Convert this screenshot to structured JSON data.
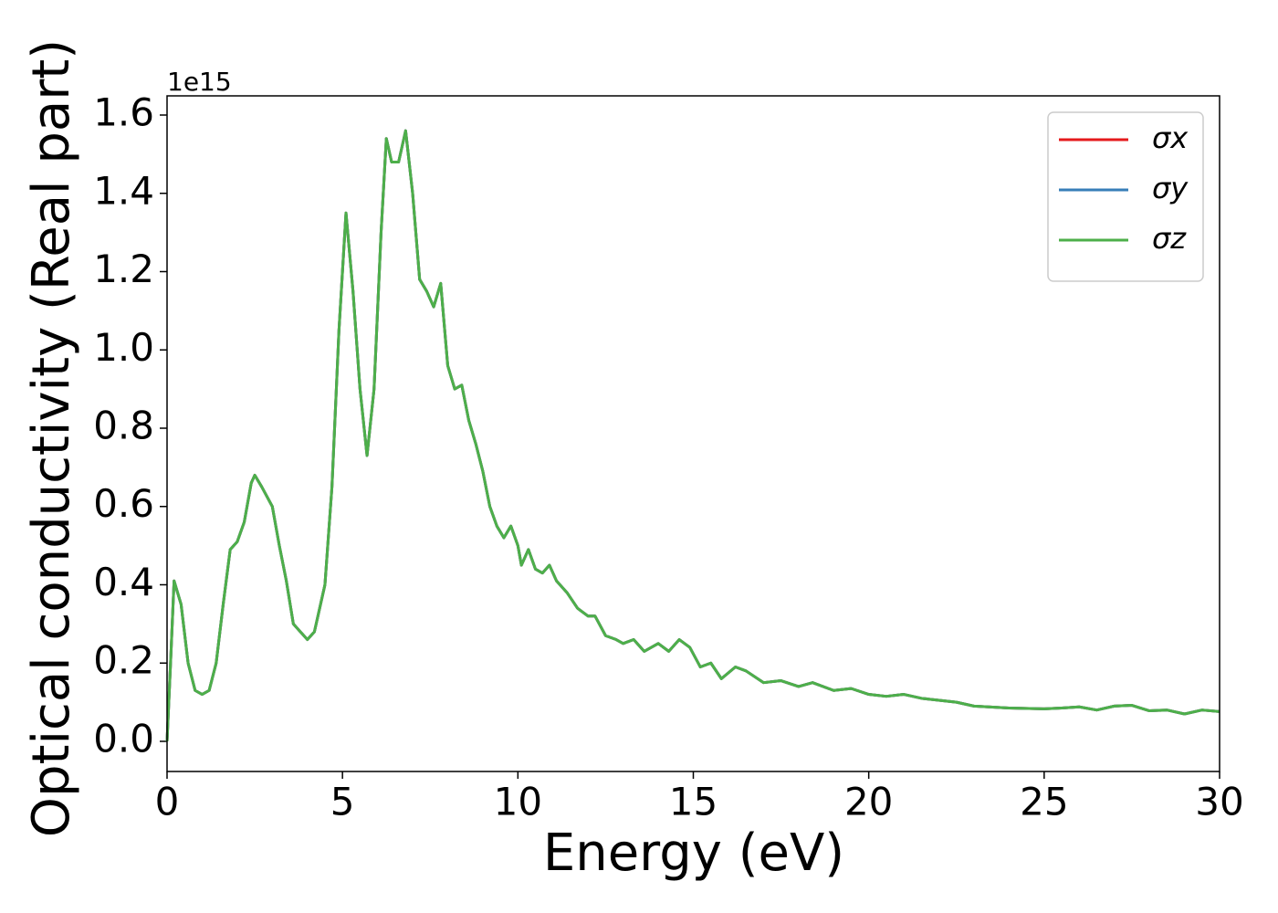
{
  "chart_data": {
    "type": "line",
    "xlabel": "Energy (eV)",
    "ylabel": "Optical conductivity (Real part)",
    "y_offset_label": "1e15",
    "xlim": [
      0,
      30
    ],
    "ylim": [
      -0.077,
      1.649
    ],
    "xticks": [
      0,
      5,
      10,
      15,
      20,
      25,
      30
    ],
    "yticks": [
      {
        "value": 0,
        "label": "0.0"
      },
      {
        "value": 0.2,
        "label": "0.2"
      },
      {
        "value": 0.4,
        "label": "0.4"
      },
      {
        "value": 0.6,
        "label": "0.6"
      },
      {
        "value": 0.8,
        "label": "0.8"
      },
      {
        "value": 1.0,
        "label": "1.0"
      },
      {
        "value": 1.2,
        "label": "1.2"
      },
      {
        "value": 1.4,
        "label": "1.4"
      },
      {
        "value": 1.6,
        "label": "1.6"
      }
    ],
    "grid": false,
    "legend": "upper right",
    "x": [
      0,
      0.1,
      0.2,
      0.4,
      0.6,
      0.8,
      1.0,
      1.2,
      1.4,
      1.6,
      1.8,
      2.0,
      2.2,
      2.4,
      2.5,
      2.7,
      3.0,
      3.2,
      3.4,
      3.6,
      3.8,
      4.0,
      4.2,
      4.5,
      4.7,
      4.9,
      5.1,
      5.3,
      5.5,
      5.7,
      5.9,
      6.1,
      6.25,
      6.4,
      6.6,
      6.8,
      7.0,
      7.2,
      7.4,
      7.6,
      7.8,
      8.0,
      8.2,
      8.4,
      8.6,
      8.8,
      9.0,
      9.2,
      9.4,
      9.6,
      9.8,
      10.0,
      10.1,
      10.3,
      10.5,
      10.7,
      10.9,
      11.1,
      11.4,
      11.7,
      12.0,
      12.2,
      12.5,
      12.8,
      13.0,
      13.3,
      13.6,
      14.0,
      14.3,
      14.6,
      14.9,
      15.2,
      15.5,
      15.8,
      16.2,
      16.5,
      17.0,
      17.5,
      18.0,
      18.4,
      19.0,
      19.5,
      20.0,
      20.5,
      21.0,
      21.5,
      22.0,
      22.5,
      23.0,
      24.0,
      25.0,
      25.5,
      26.0,
      26.5,
      27.0,
      27.5,
      28.0,
      28.5,
      29.0,
      29.5,
      30.0
    ],
    "series": [
      {
        "name": "σx",
        "color": "#e41a1c",
        "values": [
          0.0,
          0.2,
          0.41,
          0.35,
          0.2,
          0.13,
          0.12,
          0.13,
          0.2,
          0.35,
          0.49,
          0.51,
          0.56,
          0.66,
          0.68,
          0.65,
          0.6,
          0.5,
          0.41,
          0.3,
          0.28,
          0.26,
          0.28,
          0.4,
          0.65,
          1.05,
          1.35,
          1.15,
          0.9,
          0.73,
          0.9,
          1.3,
          1.54,
          1.48,
          1.48,
          1.56,
          1.4,
          1.18,
          1.15,
          1.11,
          1.17,
          0.96,
          0.9,
          0.91,
          0.82,
          0.76,
          0.69,
          0.6,
          0.55,
          0.52,
          0.55,
          0.5,
          0.45,
          0.49,
          0.44,
          0.43,
          0.45,
          0.41,
          0.38,
          0.34,
          0.32,
          0.32,
          0.27,
          0.26,
          0.25,
          0.26,
          0.23,
          0.25,
          0.23,
          0.26,
          0.24,
          0.19,
          0.2,
          0.16,
          0.19,
          0.18,
          0.15,
          0.155,
          0.14,
          0.15,
          0.13,
          0.135,
          0.12,
          0.115,
          0.12,
          0.11,
          0.105,
          0.1,
          0.09,
          0.085,
          0.083,
          0.085,
          0.088,
          0.08,
          0.09,
          0.092,
          0.078,
          0.08,
          0.07,
          0.08,
          0.076
        ]
      },
      {
        "name": "σy",
        "color": "#377eb8",
        "values": [
          0.0,
          0.2,
          0.41,
          0.35,
          0.2,
          0.13,
          0.12,
          0.13,
          0.2,
          0.35,
          0.49,
          0.51,
          0.56,
          0.66,
          0.68,
          0.65,
          0.6,
          0.5,
          0.41,
          0.3,
          0.28,
          0.26,
          0.28,
          0.4,
          0.65,
          1.05,
          1.35,
          1.15,
          0.9,
          0.73,
          0.9,
          1.3,
          1.54,
          1.48,
          1.48,
          1.56,
          1.4,
          1.18,
          1.15,
          1.11,
          1.17,
          0.96,
          0.9,
          0.91,
          0.82,
          0.76,
          0.69,
          0.6,
          0.55,
          0.52,
          0.55,
          0.5,
          0.45,
          0.49,
          0.44,
          0.43,
          0.45,
          0.41,
          0.38,
          0.34,
          0.32,
          0.32,
          0.27,
          0.26,
          0.25,
          0.26,
          0.23,
          0.25,
          0.23,
          0.26,
          0.24,
          0.19,
          0.2,
          0.16,
          0.19,
          0.18,
          0.15,
          0.155,
          0.14,
          0.15,
          0.13,
          0.135,
          0.12,
          0.115,
          0.12,
          0.11,
          0.105,
          0.1,
          0.09,
          0.085,
          0.083,
          0.085,
          0.088,
          0.08,
          0.09,
          0.092,
          0.078,
          0.08,
          0.07,
          0.08,
          0.076
        ]
      },
      {
        "name": "σz",
        "color": "#4daf4a",
        "values": [
          0.0,
          0.2,
          0.41,
          0.35,
          0.2,
          0.13,
          0.12,
          0.13,
          0.2,
          0.35,
          0.49,
          0.51,
          0.56,
          0.66,
          0.68,
          0.65,
          0.6,
          0.5,
          0.41,
          0.3,
          0.28,
          0.26,
          0.28,
          0.4,
          0.65,
          1.05,
          1.35,
          1.15,
          0.9,
          0.73,
          0.9,
          1.3,
          1.54,
          1.48,
          1.48,
          1.56,
          1.4,
          1.18,
          1.15,
          1.11,
          1.17,
          0.96,
          0.9,
          0.91,
          0.82,
          0.76,
          0.69,
          0.6,
          0.55,
          0.52,
          0.55,
          0.5,
          0.45,
          0.49,
          0.44,
          0.43,
          0.45,
          0.41,
          0.38,
          0.34,
          0.32,
          0.32,
          0.27,
          0.26,
          0.25,
          0.26,
          0.23,
          0.25,
          0.23,
          0.26,
          0.24,
          0.19,
          0.2,
          0.16,
          0.19,
          0.18,
          0.15,
          0.155,
          0.14,
          0.15,
          0.13,
          0.135,
          0.12,
          0.115,
          0.12,
          0.11,
          0.105,
          0.1,
          0.09,
          0.085,
          0.083,
          0.085,
          0.088,
          0.08,
          0.09,
          0.092,
          0.078,
          0.08,
          0.07,
          0.08,
          0.076
        ]
      }
    ]
  }
}
